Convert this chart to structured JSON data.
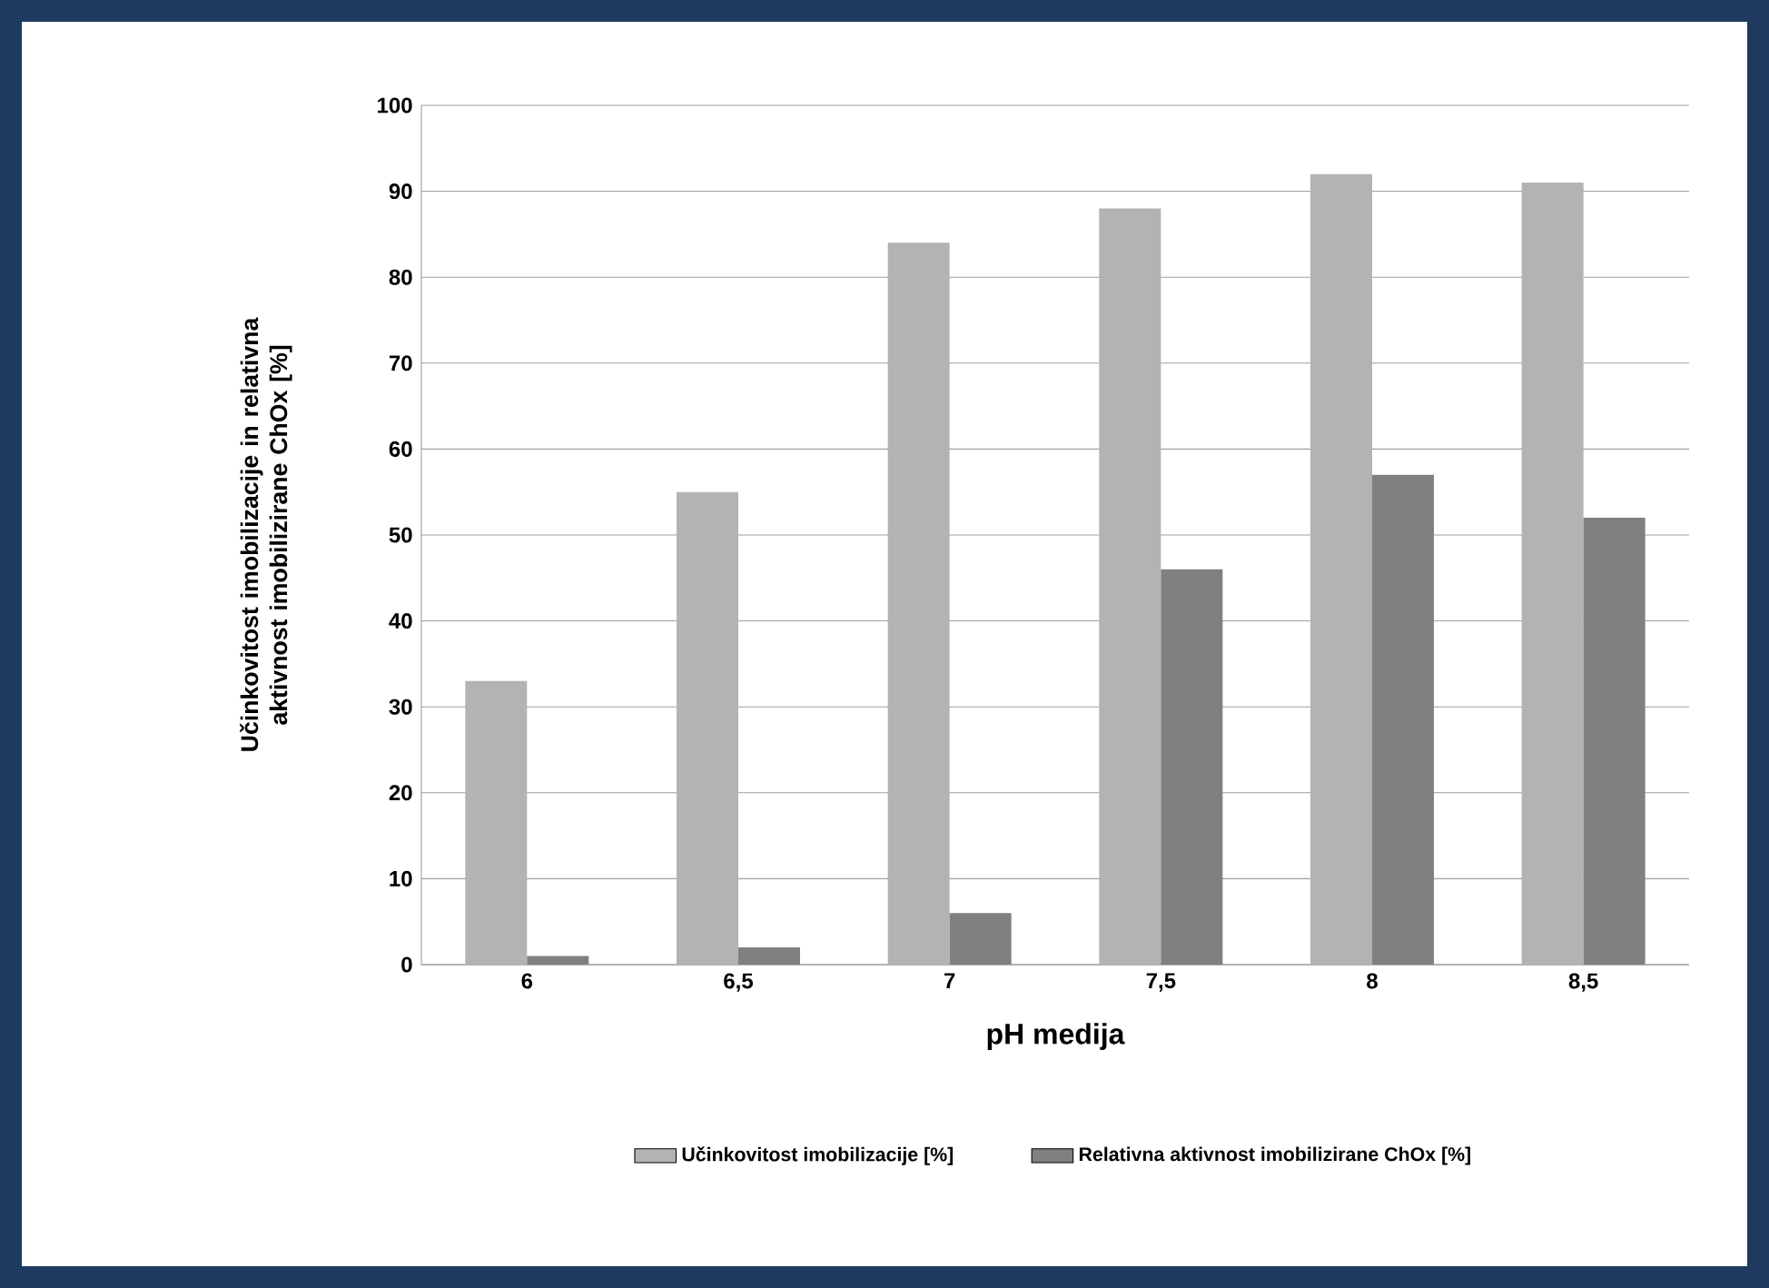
{
  "chart_data": {
    "type": "bar",
    "xlabel": "pH medija",
    "ylabel": "Učinkovitost imobilizacije in relativna aktivnost imobilizirane ChOx [%]",
    "categories": [
      "6",
      "6,5",
      "7",
      "7,5",
      "8",
      "8,5"
    ],
    "series": [
      {
        "name": "Učinkovitost imobilizacije [%]",
        "color": "#b3b3b3",
        "values": [
          33,
          55,
          84,
          88,
          92,
          91
        ]
      },
      {
        "name": "Relativna aktivnost imobilizirane ChOx [%]",
        "color": "#808080",
        "values": [
          1,
          2,
          6,
          46,
          57,
          52
        ]
      }
    ],
    "ylim": [
      0,
      100
    ],
    "yticks": [
      0,
      10,
      20,
      30,
      40,
      50,
      60,
      70,
      80,
      90,
      100
    ],
    "grid": "y",
    "legend": "bottom"
  }
}
